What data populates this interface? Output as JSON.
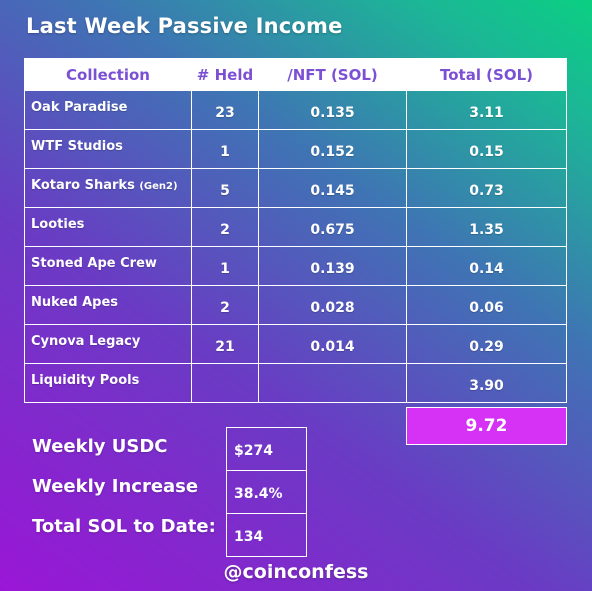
{
  "title": "Last Week Passive Income",
  "table": {
    "headers": [
      "Collection",
      "# Held",
      "/NFT (SOL)",
      "Total (SOL)"
    ],
    "rows": [
      {
        "collection": "Oak Paradise",
        "held": "23",
        "per_nft": "0.135",
        "total": "3.11"
      },
      {
        "collection": "WTF Studios",
        "held": "1",
        "per_nft": "0.152",
        "total": "0.15"
      },
      {
        "collection": "Kotaro Sharks",
        "collection_suffix": "(Gen2)",
        "held": "5",
        "per_nft": "0.145",
        "total": "0.73"
      },
      {
        "collection": "Looties",
        "held": "2",
        "per_nft": "0.675",
        "total": "1.35"
      },
      {
        "collection": "Stoned Ape Crew",
        "held": "1",
        "per_nft": "0.139",
        "total": "0.14"
      },
      {
        "collection": "Nuked Apes",
        "held": "2",
        "per_nft": "0.028",
        "total": "0.06"
      },
      {
        "collection": "Cynova Legacy",
        "held": "21",
        "per_nft": "0.014",
        "total": "0.29"
      },
      {
        "collection": "Liquidity Pools",
        "held": "",
        "per_nft": "",
        "total": "3.90"
      }
    ],
    "grand_total": "9.72"
  },
  "stats": {
    "weekly_usdc_label": "Weekly USDC",
    "weekly_usdc_value": "$274",
    "weekly_increase_label": "Weekly Increase",
    "weekly_increase_value": "38.4%",
    "total_sol_label": "Total SOL to Date:",
    "total_sol_value": "134"
  },
  "handle": "@coinconfess",
  "colors": {
    "header_text": "#7b50d4",
    "total_highlight": "#d532f6",
    "gradient_start": "#9a16d6",
    "gradient_end": "#0bcf82"
  }
}
